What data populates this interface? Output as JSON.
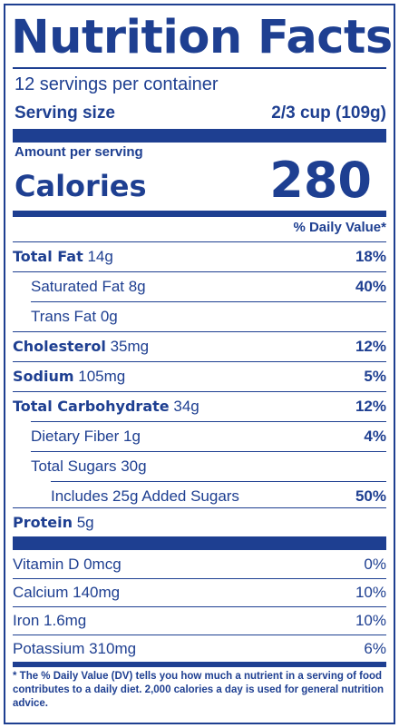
{
  "title": "Nutrition Facts",
  "servings_per_container": "12 servings per container",
  "serving_size": {
    "label": "Serving size",
    "value": "2/3 cup (109g)"
  },
  "amount_per_serving": "Amount per serving",
  "calories": {
    "label": "Calories",
    "value": "280"
  },
  "daily_value_header": "% Daily Value*",
  "nutrients": [
    {
      "name": "Total Fat",
      "amount": "14g",
      "dv": "18%"
    },
    {
      "name": "Saturated Fat 8g",
      "amount": "",
      "dv": "40%"
    },
    {
      "name": "Trans Fat 0g",
      "amount": "",
      "dv": ""
    },
    {
      "name": "Cholesterol",
      "amount": "35mg",
      "dv": "12%"
    },
    {
      "name": "Sodium",
      "amount": "105mg",
      "dv": "5%"
    },
    {
      "name": "Total Carbohydrate",
      "amount": "34g",
      "dv": "12%"
    },
    {
      "name": "Dietary Fiber 1g",
      "amount": "",
      "dv": "4%"
    },
    {
      "name": "Total Sugars 30g",
      "amount": "",
      "dv": ""
    },
    {
      "name": "Includes 25g Added Sugars",
      "amount": "",
      "dv": "50%"
    },
    {
      "name": "Protein",
      "amount": "5g",
      "dv": ""
    }
  ],
  "vitamins": [
    {
      "name": "Vitamin D 0mcg",
      "dv": "0%"
    },
    {
      "name": "Calcium 140mg",
      "dv": "10%"
    },
    {
      "name": "Iron 1.6mg",
      "dv": "10%"
    },
    {
      "name": "Potassium 310mg",
      "dv": "6%"
    }
  ],
  "footnote": "* The % Daily Value (DV) tells you how much a nutrient in a serving of food contributes to a daily diet. 2,000 calories a day is used for general nutrition advice.",
  "colors": {
    "accent": "#1e3f91",
    "background": "#ffffff"
  }
}
